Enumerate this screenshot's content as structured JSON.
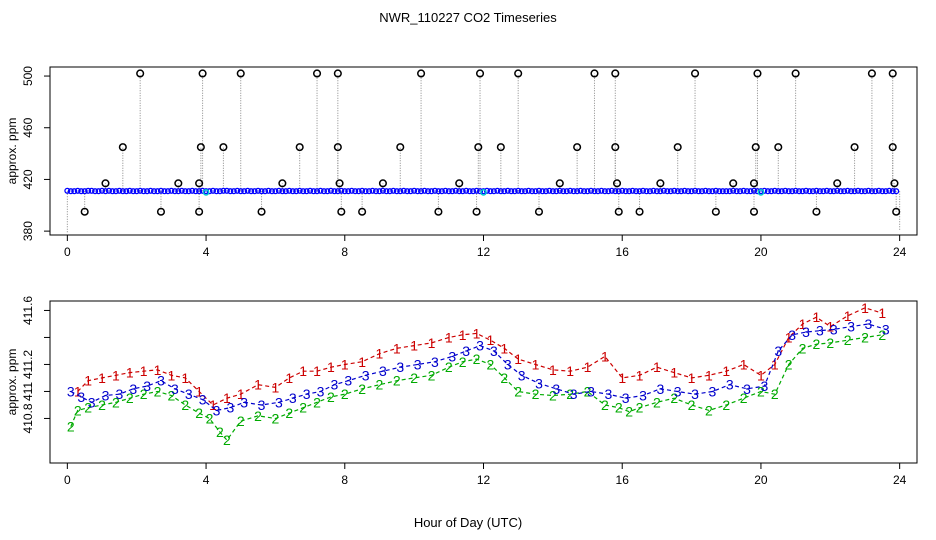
{
  "figure": {
    "title": "NWR_110227  CO2 Timeseries",
    "xlabel": "Hour of Day (UTC)"
  },
  "chart_data": [
    {
      "type": "scatter",
      "ylabel": "approx. ppm",
      "xlim": [
        -0.5,
        24.5
      ],
      "ylim": [
        377,
        507
      ],
      "xticks": [
        0,
        4,
        8,
        12,
        16,
        20,
        24
      ],
      "yticks": [
        380,
        420,
        460,
        500
      ],
      "baseline": 410.9,
      "series": [
        {
          "name": "baseline",
          "color": "#0000ff"
        },
        {
          "name": "outliers",
          "color": "#000000",
          "x": [
            0.5,
            1.1,
            1.6,
            2.1,
            2.7,
            3.2,
            3.8,
            3.8,
            3.85,
            3.9,
            4.5,
            5.0,
            5.6,
            6.2,
            6.7,
            7.2,
            7.8,
            7.8,
            7.85,
            7.9,
            8.5,
            9.1,
            9.6,
            10.2,
            10.7,
            11.3,
            11.8,
            11.85,
            11.9,
            12.5,
            13.0,
            13.6,
            14.2,
            14.7,
            15.2,
            15.8,
            15.8,
            15.85,
            15.9,
            16.5,
            17.1,
            17.6,
            18.1,
            18.7,
            19.2,
            19.8,
            19.8,
            19.85,
            19.9,
            20.5,
            21.0,
            21.6,
            22.2,
            22.7,
            23.2,
            23.8,
            23.8,
            23.85,
            23.9
          ],
          "y": [
            395,
            417,
            445,
            502,
            395,
            417,
            395,
            417,
            445,
            502,
            445,
            502,
            395,
            417,
            445,
            502,
            445,
            502,
            417,
            395,
            395,
            417,
            445,
            502,
            395,
            417,
            395,
            445,
            502,
            445,
            502,
            395,
            417,
            445,
            502,
            445,
            502,
            417,
            395,
            395,
            417,
            445,
            502,
            395,
            417,
            395,
            417,
            445,
            502,
            445,
            502,
            395,
            417,
            445,
            502,
            502,
            445,
            417,
            395
          ]
        },
        {
          "name": "cyan markers",
          "color": "#00cccc",
          "x": [
            4.0,
            12.0,
            20.0
          ],
          "y": [
            410,
            410,
            410
          ]
        }
      ]
    },
    {
      "type": "scatter",
      "ylabel": "approx. ppm",
      "xlim": [
        -0.5,
        24.5
      ],
      "ylim": [
        410.47,
        411.67
      ],
      "xticks": [
        0,
        4,
        8,
        12,
        16,
        20,
        24
      ],
      "yticks": [
        410.8,
        411.0,
        411.2,
        411.4,
        411.6
      ],
      "ytick_labels": [
        "410.8",
        "411",
        "411.2",
        "411.6"
      ],
      "ytick_label_values": [
        410.8,
        411.0,
        411.2,
        411.6
      ],
      "series": [
        {
          "name": "1",
          "color": "#cc0000",
          "x": [
            0.3,
            0.6,
            1.0,
            1.4,
            1.8,
            2.2,
            2.6,
            3.0,
            3.4,
            3.8,
            4.2,
            4.6,
            5.0,
            5.5,
            6.0,
            6.4,
            6.8,
            7.2,
            7.6,
            8.0,
            8.5,
            9.0,
            9.5,
            10.0,
            10.5,
            11.0,
            11.4,
            11.8,
            12.2,
            12.6,
            13.0,
            13.5,
            14.0,
            14.5,
            15.0,
            15.5,
            16.0,
            16.5,
            17.0,
            17.5,
            18.0,
            18.5,
            19.0,
            19.5,
            20.0,
            20.4,
            20.8,
            21.2,
            21.6,
            22.0,
            22.5,
            23.0,
            23.5
          ],
          "y": [
            411.0,
            411.08,
            411.1,
            411.12,
            411.14,
            411.15,
            411.16,
            411.12,
            411.1,
            411.0,
            410.9,
            410.95,
            410.98,
            411.05,
            411.03,
            411.1,
            411.15,
            411.15,
            411.18,
            411.2,
            411.22,
            411.28,
            411.32,
            411.34,
            411.36,
            411.4,
            411.42,
            411.43,
            411.38,
            411.32,
            411.24,
            411.2,
            411.16,
            411.15,
            411.18,
            411.26,
            411.1,
            411.12,
            411.18,
            411.14,
            411.1,
            411.12,
            411.15,
            411.2,
            411.12,
            411.2,
            411.4,
            411.5,
            411.55,
            411.48,
            411.56,
            411.62,
            411.58
          ]
        },
        {
          "name": "2",
          "color": "#00aa00",
          "x": [
            0.1,
            0.3,
            0.6,
            1.0,
            1.4,
            1.8,
            2.2,
            2.6,
            3.0,
            3.4,
            3.8,
            4.1,
            4.4,
            4.6,
            5.0,
            5.5,
            6.0,
            6.4,
            6.8,
            7.2,
            7.6,
            8.0,
            8.5,
            9.0,
            9.5,
            10.0,
            10.5,
            11.0,
            11.4,
            11.8,
            12.2,
            12.6,
            13.0,
            13.5,
            14.0,
            14.5,
            15.0,
            15.5,
            15.9,
            16.2,
            16.5,
            17.0,
            17.5,
            18.0,
            18.5,
            19.0,
            19.5,
            20.0,
            20.4,
            20.8,
            21.2,
            21.6,
            22.0,
            22.5,
            23.0,
            23.5
          ],
          "y": [
            410.74,
            410.86,
            410.88,
            410.9,
            410.92,
            410.95,
            410.98,
            411.0,
            410.97,
            410.9,
            410.84,
            410.8,
            410.7,
            410.64,
            410.78,
            410.82,
            410.8,
            410.84,
            410.88,
            410.92,
            410.96,
            410.98,
            411.02,
            411.05,
            411.08,
            411.1,
            411.12,
            411.18,
            411.22,
            411.24,
            411.2,
            411.1,
            411.0,
            410.98,
            410.97,
            410.98,
            411.0,
            410.9,
            410.88,
            410.85,
            410.88,
            410.92,
            410.95,
            410.9,
            410.86,
            410.9,
            410.95,
            411.0,
            410.98,
            411.2,
            411.32,
            411.35,
            411.36,
            411.38,
            411.4,
            411.42
          ]
        },
        {
          "name": "3",
          "color": "#0000cc",
          "x": [
            0.1,
            0.4,
            0.7,
            1.1,
            1.5,
            1.9,
            2.3,
            2.7,
            3.1,
            3.5,
            3.9,
            4.3,
            4.7,
            5.1,
            5.6,
            6.1,
            6.5,
            6.9,
            7.3,
            7.7,
            8.1,
            8.6,
            9.1,
            9.6,
            10.1,
            10.6,
            11.1,
            11.5,
            11.9,
            12.3,
            12.7,
            13.1,
            13.6,
            14.1,
            14.6,
            15.1,
            15.6,
            16.1,
            16.6,
            17.1,
            17.6,
            18.1,
            18.6,
            19.1,
            19.6,
            20.1,
            20.5,
            20.9,
            21.3,
            21.7,
            22.1,
            22.6,
            23.1,
            23.6
          ],
          "y": [
            411.0,
            410.96,
            410.92,
            410.97,
            410.98,
            411.02,
            411.04,
            411.08,
            411.02,
            410.98,
            410.94,
            410.86,
            410.88,
            410.92,
            410.9,
            410.92,
            410.95,
            410.98,
            411.0,
            411.05,
            411.08,
            411.12,
            411.15,
            411.18,
            411.2,
            411.22,
            411.26,
            411.3,
            411.34,
            411.3,
            411.2,
            411.12,
            411.06,
            411.02,
            410.98,
            411.0,
            410.98,
            410.95,
            410.97,
            411.02,
            411.0,
            410.98,
            411.0,
            411.05,
            411.02,
            411.04,
            411.3,
            411.42,
            411.44,
            411.45,
            411.46,
            411.48,
            411.5,
            411.46
          ]
        }
      ]
    }
  ]
}
